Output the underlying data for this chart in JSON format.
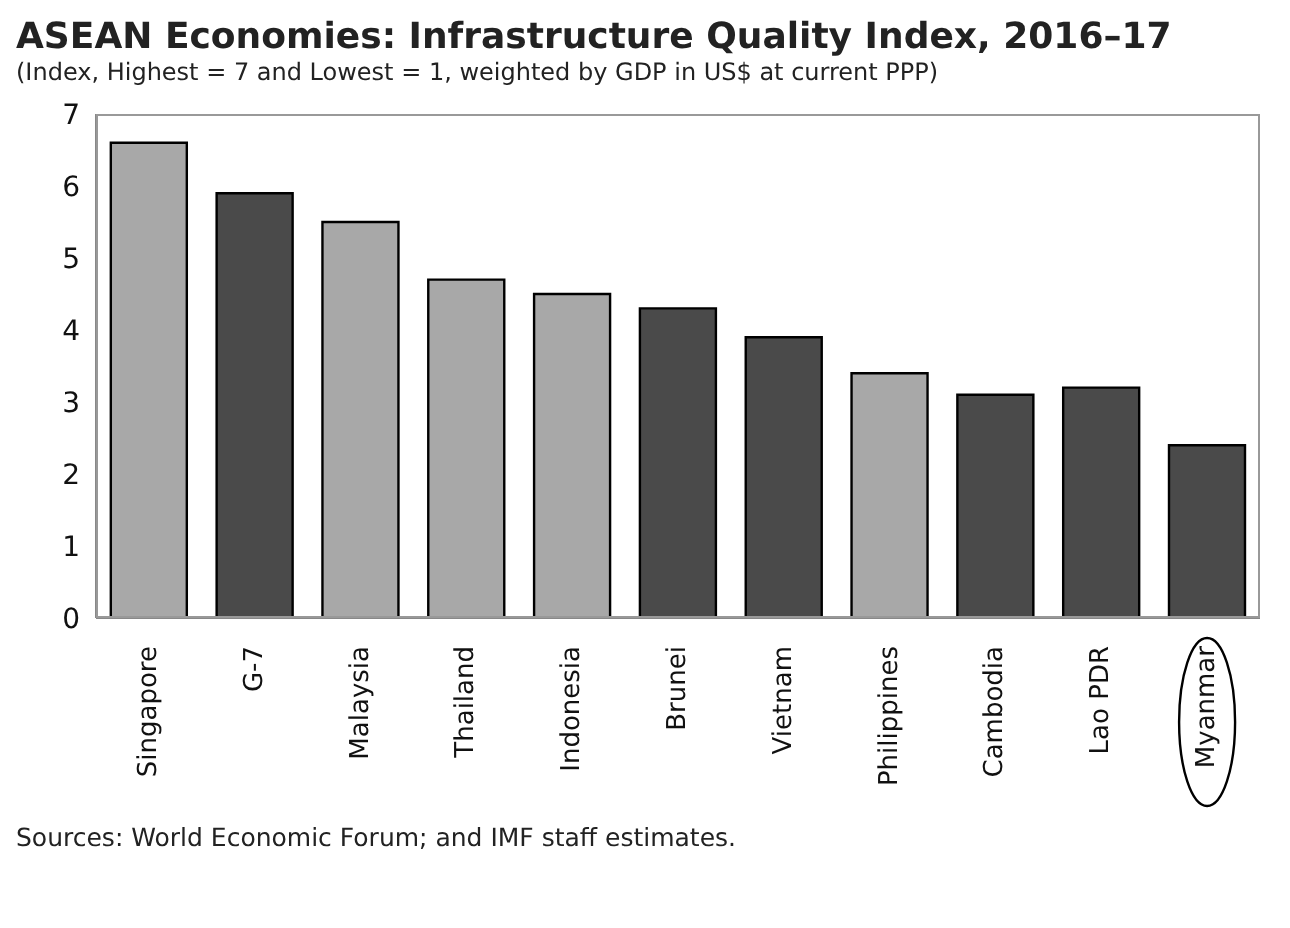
{
  "chart_data": {
    "type": "bar",
    "title": "ASEAN Economies: Infrastructure Quality Index, 2016–17",
    "subtitle": "(Index, Highest = 7 and Lowest = 1, weighted by GDP in US$ at current PPP)",
    "categories": [
      "Singapore",
      "G-7",
      "Malaysia",
      "Thailand",
      "Indonesia",
      "Brunei",
      "Vietnam",
      "Philippines",
      "Cambodia",
      "Lao PDR",
      "Myanmar"
    ],
    "values": [
      6.6,
      5.9,
      5.5,
      4.7,
      4.5,
      4.3,
      3.9,
      3.4,
      3.1,
      3.2,
      2.4
    ],
    "colors": [
      "#a8a8a8",
      "#4a4a4a",
      "#a8a8a8",
      "#a8a8a8",
      "#a8a8a8",
      "#4a4a4a",
      "#4a4a4a",
      "#a8a8a8",
      "#4a4a4a",
      "#4a4a4a",
      "#4a4a4a"
    ],
    "ylim": [
      0,
      7
    ],
    "yticks": [
      0,
      1,
      2,
      3,
      4,
      5,
      6,
      7
    ],
    "grid": false,
    "legend": false,
    "annotations": [
      "Sources: World Economic Forum; and IMF staff estimates."
    ]
  }
}
